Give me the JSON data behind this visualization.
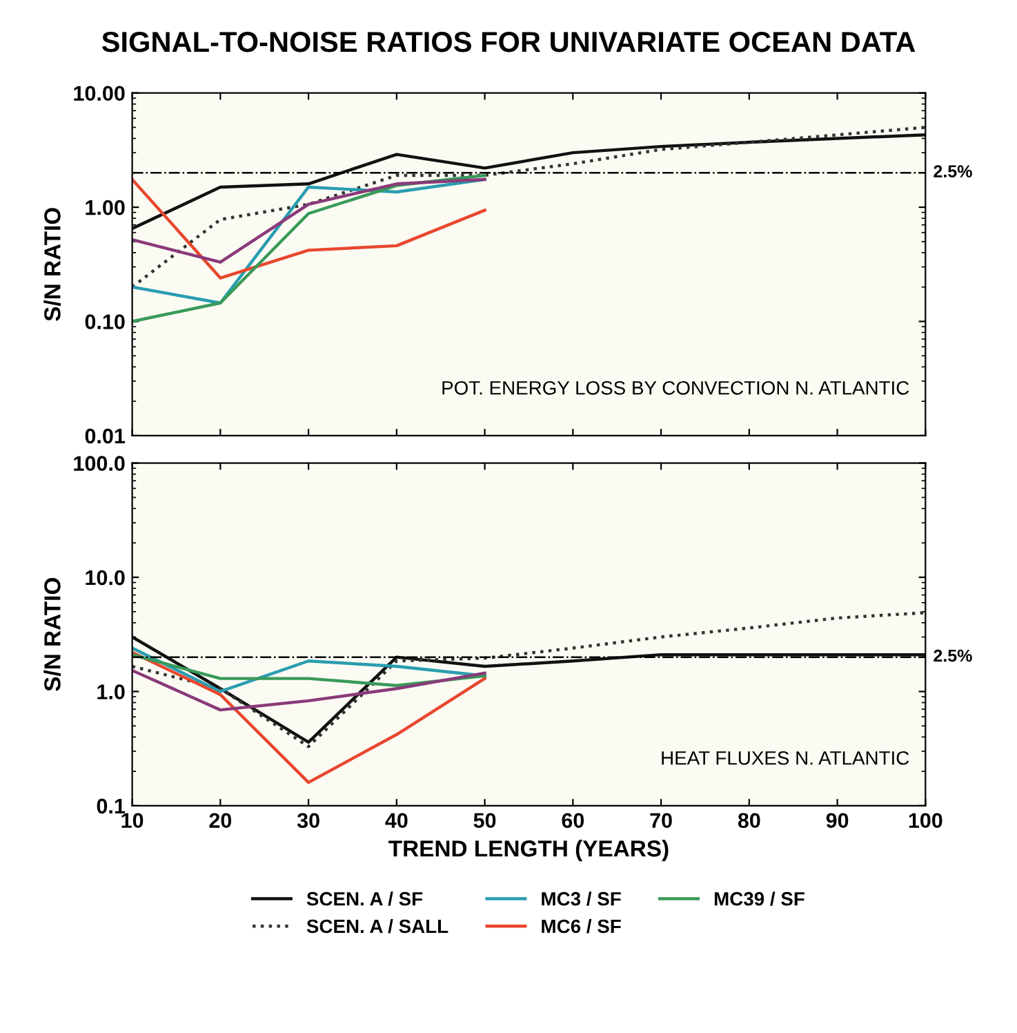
{
  "chart_data": [
    {
      "type": "line",
      "title": "SIGNAL-TO-NOISE RATIOS FOR UNIVARIATE OCEAN DATA",
      "ylabel": "S/N RATIO",
      "log": "y",
      "x": [
        10,
        20,
        30,
        40,
        50,
        60,
        70,
        80,
        90,
        100
      ],
      "xlim": [
        10,
        100
      ],
      "xticks": [
        10,
        20,
        30,
        40,
        50,
        60,
        70,
        80,
        90,
        100
      ],
      "ylim": [
        0.01,
        10
      ],
      "yticks": [
        {
          "value": 0.01,
          "label": "0.01"
        },
        {
          "value": 0.1,
          "label": "0.10"
        },
        {
          "value": 1,
          "label": "1.00"
        },
        {
          "value": 10,
          "label": "10.00"
        }
      ],
      "tick_labels": "y",
      "legend": false,
      "marker": "none",
      "annotations": [
        "POT. ENERGY LOSS BY CONVECTION N. ATLANTIC",
        {
          "text": "2.5%",
          "x": 100,
          "y": 2.0
        }
      ],
      "ref_lines": [
        {
          "axis": "y",
          "value": 2.0,
          "color": "#000000",
          "line_style": "dashdot"
        }
      ],
      "series": [
        {
          "color": "#111111",
          "line_style": "solid",
          "values": [
            0.65,
            1.5,
            1.6,
            2.9,
            2.2,
            3.0,
            3.4,
            3.7,
            4.0,
            4.3
          ]
        },
        {
          "color": "#333333",
          "line_style": "dotted",
          "values": [
            0.2,
            0.78,
            1.06,
            1.9,
            1.9,
            2.4,
            3.2,
            3.7,
            4.3,
            5.0
          ]
        },
        {
          "color": "#2a9db0",
          "line_style": "solid",
          "values": [
            0.2,
            0.145,
            1.5,
            1.36,
            1.75,
            null,
            null,
            null,
            null,
            null
          ]
        },
        {
          "color": "#e8472e",
          "line_style": "solid",
          "values": [
            1.75,
            0.24,
            0.42,
            0.46,
            0.94,
            null,
            null,
            null,
            null,
            null
          ]
        },
        {
          "color": "#3a9a5a",
          "line_style": "solid",
          "values": [
            0.1,
            0.145,
            0.88,
            1.55,
            1.9,
            null,
            null,
            null,
            null,
            null
          ]
        },
        {
          "color": "#8a3a7a",
          "line_style": "solid",
          "values": [
            0.52,
            0.33,
            1.06,
            1.6,
            1.75,
            null,
            null,
            null,
            null,
            null
          ]
        }
      ]
    },
    {
      "type": "line",
      "xlabel": "TREND LENGTH (YEARS)",
      "ylabel": "S/N RATIO",
      "log": "y",
      "x": [
        10,
        20,
        30,
        40,
        50,
        60,
        70,
        80,
        90,
        100
      ],
      "xlim": [
        10,
        100
      ],
      "xticks": [
        10,
        20,
        30,
        40,
        50,
        60,
        70,
        80,
        90,
        100
      ],
      "ylim": [
        0.1,
        100
      ],
      "yticks": [
        {
          "value": 0.1,
          "label": "0.1"
        },
        {
          "value": 1,
          "label": "1.0"
        },
        {
          "value": 10,
          "label": "10.0"
        },
        {
          "value": 100,
          "label": "100.0"
        }
      ],
      "legend": "bottom",
      "marker": "none",
      "annotations": [
        "HEAT FLUXES N. ATLANTIC",
        {
          "text": "2.5%",
          "x": 100,
          "y": 2.0
        }
      ],
      "ref_lines": [
        {
          "axis": "y",
          "value": 2.0,
          "color": "#000000",
          "line_style": "dashdot"
        }
      ],
      "series": [
        {
          "name": "SCEN. A / SF",
          "color": "#111111",
          "line_style": "solid",
          "values": [
            3.0,
            1.06,
            0.36,
            2.0,
            1.66,
            1.85,
            2.1,
            2.1,
            2.1,
            2.1
          ]
        },
        {
          "name": "SCEN. A / SALL",
          "color": "#333333",
          "line_style": "dotted",
          "values": [
            1.66,
            1.06,
            0.33,
            1.85,
            1.96,
            2.4,
            3.0,
            3.6,
            4.4,
            4.9
          ]
        },
        {
          "name": "MC3 / SF",
          "color": "#2a9db0",
          "line_style": "solid",
          "values": [
            2.4,
            1.0,
            1.85,
            1.66,
            1.37,
            null,
            null,
            null,
            null,
            null
          ]
        },
        {
          "name": "MC6 / SF",
          "color": "#e8472e",
          "line_style": "solid",
          "values": [
            2.2,
            0.94,
            0.16,
            0.42,
            1.3,
            null,
            null,
            null,
            null,
            null
          ]
        },
        {
          "name": "MC39 / SF",
          "color": "#3a9a5a",
          "line_style": "solid",
          "values": [
            2.1,
            1.3,
            1.3,
            1.13,
            1.37,
            null,
            null,
            null,
            null,
            null
          ]
        },
        {
          "color": "#8a3a7a",
          "line_style": "solid",
          "values": [
            1.53,
            0.69,
            0.83,
            1.06,
            1.45,
            null,
            null,
            null,
            null,
            null
          ]
        }
      ]
    }
  ]
}
